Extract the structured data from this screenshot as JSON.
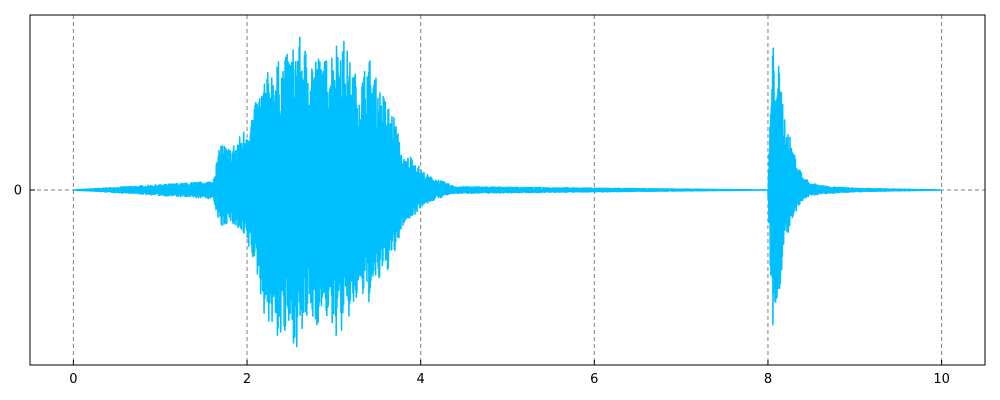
{
  "chart_data": {
    "type": "line",
    "title": "",
    "xlabel": "",
    "ylabel": "",
    "xlim": [
      -0.5,
      10.5
    ],
    "ylim": [
      -1.0,
      1.0
    ],
    "x_ticks": [
      0,
      2,
      4,
      6,
      8,
      10
    ],
    "x_tick_labels": [
      "0",
      "2",
      "4",
      "6",
      "8",
      "10"
    ],
    "y_ticks": [
      0
    ],
    "y_tick_labels": [
      "0"
    ],
    "grid": true,
    "grid_style": "dashed",
    "series_color": "#00BFFF",
    "series": [
      {
        "values_description_free": true,
        "x": [
          0.0,
          1.6,
          1.7,
          1.8,
          1.9,
          2.0,
          2.1,
          2.2,
          2.3,
          2.4,
          2.5,
          2.6,
          2.7,
          2.8,
          2.9,
          3.0,
          3.1,
          3.2,
          3.3,
          3.4,
          3.5,
          3.6,
          3.7,
          3.8,
          3.9,
          4.0,
          4.1,
          4.2,
          4.3,
          4.4,
          8.0,
          8.05,
          8.1,
          8.15,
          8.2,
          8.3,
          8.4,
          8.5,
          8.7,
          9.0,
          10.0
        ],
        "envelope_upper": [
          0.0,
          0.05,
          0.28,
          0.24,
          0.3,
          0.38,
          0.5,
          0.65,
          0.72,
          0.75,
          0.8,
          0.88,
          0.8,
          0.78,
          0.75,
          0.85,
          0.9,
          0.72,
          0.62,
          0.78,
          0.62,
          0.52,
          0.42,
          0.18,
          0.2,
          0.12,
          0.08,
          0.06,
          0.04,
          0.02,
          0.0,
          0.84,
          0.8,
          0.62,
          0.4,
          0.22,
          0.08,
          0.04,
          0.02,
          0.01,
          0.0
        ],
        "envelope_lower": [
          0.0,
          -0.05,
          -0.22,
          -0.18,
          -0.24,
          -0.32,
          -0.45,
          -0.72,
          -0.82,
          -0.88,
          -0.85,
          -0.92,
          -0.75,
          -0.78,
          -0.72,
          -0.85,
          -0.82,
          -0.72,
          -0.62,
          -0.65,
          -0.55,
          -0.48,
          -0.38,
          -0.2,
          -0.16,
          -0.1,
          -0.07,
          -0.05,
          -0.03,
          -0.02,
          0.0,
          -0.82,
          -0.72,
          -0.5,
          -0.3,
          -0.16,
          -0.06,
          -0.03,
          -0.02,
          -0.01,
          0.0
        ]
      }
    ]
  }
}
